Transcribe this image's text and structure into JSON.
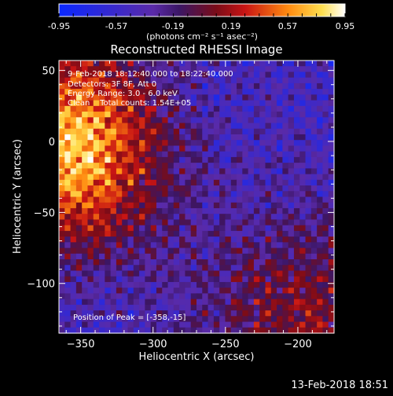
{
  "colorbar": {
    "tick_labels": [
      "-0.95",
      "-0.57",
      "-0.19",
      "0.19",
      "0.57",
      "0.95"
    ],
    "min": -0.95,
    "max": 0.95,
    "units_label": "(photons cm⁻² s⁻¹ asec⁻²)"
  },
  "chart_data": {
    "type": "heatmap",
    "title": "Reconstructed RHESSI Image",
    "xlabel": "Heliocentric X (arcsec)",
    "ylabel": "Heliocentric Y (arcsec)",
    "xlim": [
      -365,
      -175
    ],
    "ylim": [
      -135,
      57
    ],
    "x_ticks": [
      -350,
      -300,
      -250,
      -200
    ],
    "y_ticks": [
      -100,
      -50,
      0,
      50
    ],
    "x_tick_labels": [
      "−350",
      "−300",
      "−250",
      "−200"
    ],
    "y_tick_labels": [
      "−100",
      "−50",
      "0",
      "50"
    ],
    "peak_position": [
      -358,
      -15
    ],
    "colormap": "rainbow-blue-purple-red-yellow-white",
    "annotations": [
      "9-Feb-2018 18:12:40.000 to 18:22:40.000",
      "Detectors: 3F 8F, Att 0",
      "Energy Range: 3.0 - 6.0 keV",
      "Clean    Total counts: 1.54E+05"
    ],
    "peak_text": "Position of Peak = [-358,-15]"
  },
  "footer": {
    "timestamp": "13-Feb-2018 18:51"
  }
}
